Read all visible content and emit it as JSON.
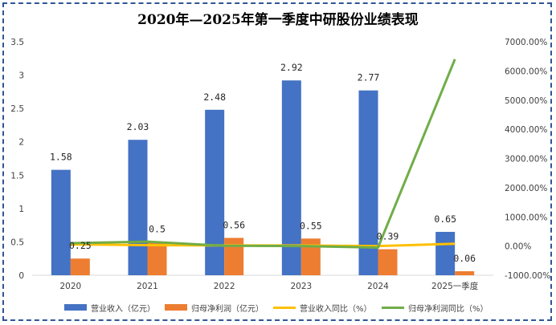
{
  "chart_data": {
    "type": "bar",
    "title": "2020年—2025年第一季度中研股份业绩表现",
    "categories": [
      "2020",
      "2021",
      "2022",
      "2023",
      "2024",
      "2025一季度"
    ],
    "y_left": {
      "ylim": [
        0,
        3.5
      ],
      "ticks": [
        "0",
        "0.5",
        "1",
        "1.5",
        "2",
        "2.5",
        "3",
        "3.5"
      ]
    },
    "y_right": {
      "ylim": [
        -1000,
        7000
      ],
      "ticks": [
        "-1000.00%",
        "0.00%",
        "1000.00%",
        "2000.00%",
        "3000.00%",
        "4000.00%",
        "5000.00%",
        "6000.00%",
        "7000.00%"
      ]
    },
    "series": [
      {
        "name": "营业收入（亿元）",
        "kind": "bar",
        "axis": "left",
        "color": "#4472c4",
        "values": [
          1.58,
          2.03,
          2.48,
          2.92,
          2.77,
          0.65
        ],
        "labels": [
          "1.58",
          "2.03",
          "2.48",
          "2.92",
          "2.77",
          "0.65"
        ]
      },
      {
        "name": "归母净利润（亿元）",
        "kind": "bar",
        "axis": "left",
        "color": "#ed7d31",
        "values": [
          0.25,
          0.5,
          0.56,
          0.55,
          0.39,
          0.06
        ],
        "labels": [
          "0.25",
          "0.5",
          "0.56",
          "0.55",
          "0.39",
          "0.06"
        ]
      },
      {
        "name": "营业收入同比（%）",
        "kind": "line",
        "axis": "right",
        "color": "#ffc000",
        "values": [
          60,
          30,
          20,
          20,
          0,
          80
        ]
      },
      {
        "name": "归母净利润同比（%）",
        "kind": "line",
        "axis": "right",
        "color": "#70ad47",
        "values": [
          100,
          150,
          10,
          0,
          -50,
          6400
        ]
      }
    ],
    "grid": false,
    "legend_position": "bottom"
  }
}
